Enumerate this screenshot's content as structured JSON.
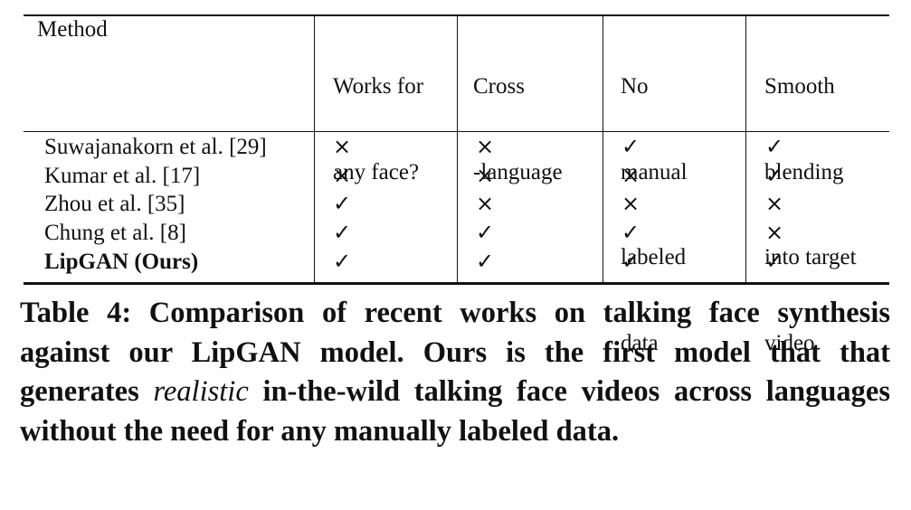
{
  "table": {
    "headers": {
      "method": "Method",
      "col1": [
        "Works for",
        "any face?"
      ],
      "col2": [
        "Cross",
        "-language"
      ],
      "col3": [
        "No",
        "manual",
        "labeled",
        "data"
      ],
      "col4": [
        "Smooth",
        "blending",
        "into target",
        "video"
      ]
    },
    "rows": [
      {
        "method": "Suwajanakorn et al. [29]",
        "bold": false,
        "marks": [
          "×",
          "×",
          "✓",
          "✓"
        ]
      },
      {
        "method": "Kumar et al. [17]",
        "bold": false,
        "marks": [
          "×",
          "×",
          "×",
          "✓"
        ]
      },
      {
        "method": "Zhou et al. [35]",
        "bold": false,
        "marks": [
          "✓",
          "×",
          "×",
          "×"
        ]
      },
      {
        "method": "Chung et al. [8]",
        "bold": false,
        "marks": [
          "✓",
          "✓",
          "✓",
          "×"
        ]
      },
      {
        "method": "LipGAN (Ours)",
        "bold": true,
        "marks": [
          "✓",
          "✓",
          "✓",
          "✓"
        ]
      }
    ]
  },
  "caption": {
    "prefix": "Table 4: Comparison of recent works on talking face synthesis against our LipGAN model. Ours is the first model that that generates ",
    "emphasis": "realistic",
    "suffix": " in-the-wild talking face videos across languages without the need for any manually labeled data."
  }
}
